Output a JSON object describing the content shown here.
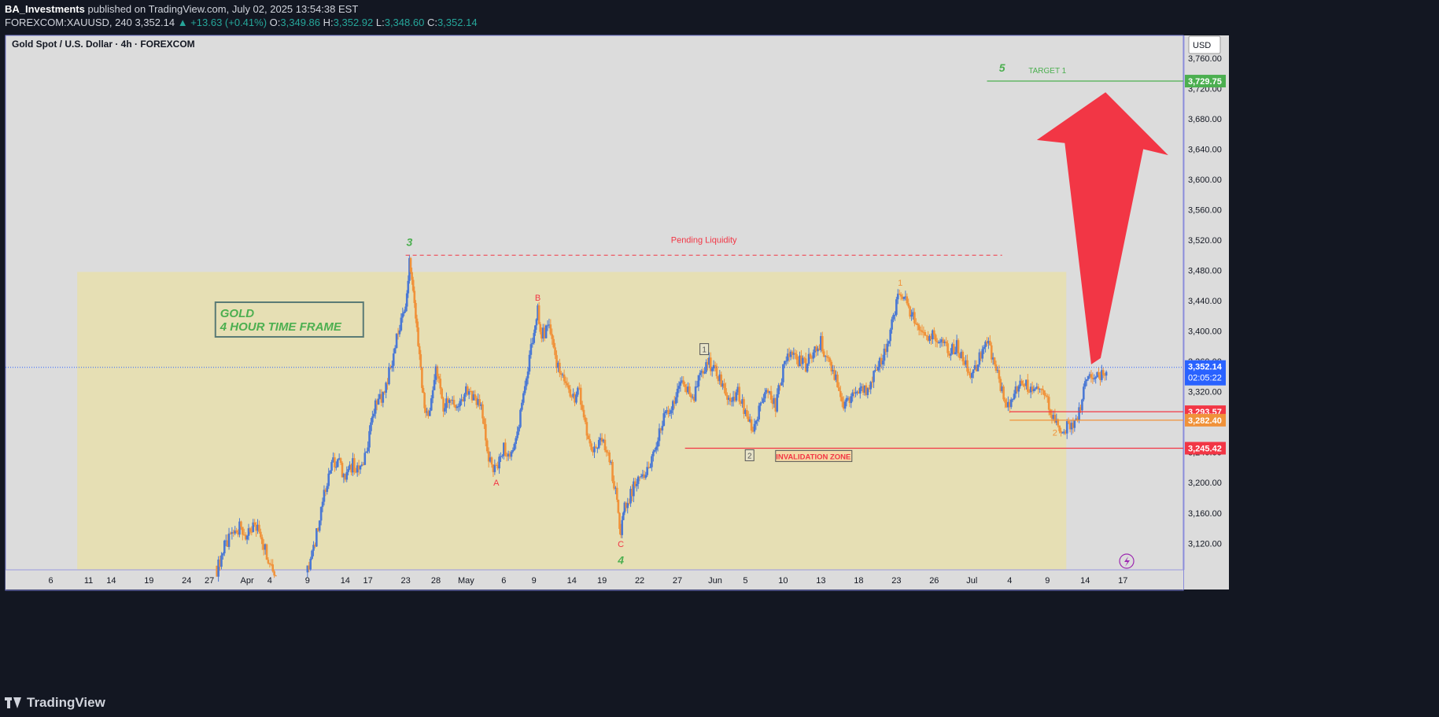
{
  "header": {
    "author": "BA_Investments",
    "published": "published on TradingView.com, July 02, 2025 13:54:38 EST",
    "symbol_line": "FOREXCOM:XAUUSD, 240",
    "last": "3,352.14",
    "change": "+13.63 (+0.41%)",
    "o_label": "O:",
    "o_value": "3,349.86",
    "h_label": "H:",
    "h_value": "3,352.92",
    "l_label": "L:",
    "l_value": "3,348.60",
    "c_label": "C:",
    "c_value": "3,352.14"
  },
  "chart_title": "Gold Spot / U.S. Dollar · 4h · FOREXCOM",
  "currency": "USD",
  "footer_brand": "TradingView",
  "colors": {
    "up": "#4a78d4",
    "down": "#f0923a",
    "zone_fill": "#e6dfb4",
    "chart_bg": "#dcdcdc",
    "accent_green": "#4caf50",
    "accent_red": "#f23645",
    "price_blue": "#2962ff"
  },
  "chart_data": {
    "type": "candlestick",
    "ylim": [
      3085,
      3790
    ],
    "y_ticks": [
      3120,
      3160,
      3200,
      3240,
      3280,
      3320,
      3360,
      3400,
      3440,
      3480,
      3520,
      3560,
      3600,
      3640,
      3680,
      3720,
      3760
    ],
    "x_ticks": [
      {
        "x": 0,
        "label": "6"
      },
      {
        "x": 5,
        "label": "11"
      },
      {
        "x": 8,
        "label": "14"
      },
      {
        "x": 13,
        "label": "19"
      },
      {
        "x": 18,
        "label": "24"
      },
      {
        "x": 21,
        "label": "27"
      },
      {
        "x": 26,
        "label": "Apr"
      },
      {
        "x": 29,
        "label": "4"
      },
      {
        "x": 34,
        "label": "9"
      },
      {
        "x": 39,
        "label": "14"
      },
      {
        "x": 42,
        "label": "17"
      },
      {
        "x": 47,
        "label": "23"
      },
      {
        "x": 51,
        "label": "28"
      },
      {
        "x": 55,
        "label": "May"
      },
      {
        "x": 60,
        "label": "6"
      },
      {
        "x": 64,
        "label": "9"
      },
      {
        "x": 69,
        "label": "14"
      },
      {
        "x": 73,
        "label": "19"
      },
      {
        "x": 78,
        "label": "22"
      },
      {
        "x": 83,
        "label": "27"
      },
      {
        "x": 88,
        "label": "Jun"
      },
      {
        "x": 92,
        "label": "5"
      },
      {
        "x": 97,
        "label": "10"
      },
      {
        "x": 102,
        "label": "13"
      },
      {
        "x": 107,
        "label": "18"
      },
      {
        "x": 112,
        "label": "23"
      },
      {
        "x": 117,
        "label": "26"
      },
      {
        "x": 122,
        "label": "Jul"
      },
      {
        "x": 127,
        "label": "4"
      },
      {
        "x": 132,
        "label": "9"
      },
      {
        "x": 137,
        "label": "14"
      },
      {
        "x": 142,
        "label": "17"
      }
    ],
    "close_path": [
      {
        "x": 22,
        "y": 3085
      },
      {
        "x": 23,
        "y": 3115
      },
      {
        "x": 24,
        "y": 3130
      },
      {
        "x": 25,
        "y": 3140
      },
      {
        "x": 26,
        "y": 3128
      },
      {
        "x": 27,
        "y": 3148
      },
      {
        "x": 28,
        "y": 3125
      },
      {
        "x": 29,
        "y": 3095
      },
      {
        "x": 30,
        "y": 3080
      },
      {
        "x": 34,
        "y": 3085
      },
      {
        "x": 35,
        "y": 3120
      },
      {
        "x": 36,
        "y": 3180
      },
      {
        "x": 37,
        "y": 3220
      },
      {
        "x": 38,
        "y": 3232
      },
      {
        "x": 39,
        "y": 3205
      },
      {
        "x": 40,
        "y": 3225
      },
      {
        "x": 41,
        "y": 3215
      },
      {
        "x": 42,
        "y": 3255
      },
      {
        "x": 43,
        "y": 3300
      },
      {
        "x": 44,
        "y": 3318
      },
      {
        "x": 45,
        "y": 3350
      },
      {
        "x": 46,
        "y": 3400
      },
      {
        "x": 47,
        "y": 3430
      },
      {
        "x": 47.5,
        "y": 3490
      },
      {
        "x": 48,
        "y": 3450
      },
      {
        "x": 48.5,
        "y": 3400
      },
      {
        "x": 49,
        "y": 3350
      },
      {
        "x": 49.5,
        "y": 3300
      },
      {
        "x": 50,
        "y": 3290
      },
      {
        "x": 51,
        "y": 3350
      },
      {
        "x": 52,
        "y": 3300
      },
      {
        "x": 53,
        "y": 3310
      },
      {
        "x": 54,
        "y": 3295
      },
      {
        "x": 55,
        "y": 3320
      },
      {
        "x": 56,
        "y": 3310
      },
      {
        "x": 57,
        "y": 3300
      },
      {
        "x": 58,
        "y": 3230
      },
      {
        "x": 59,
        "y": 3215
      },
      {
        "x": 60,
        "y": 3245
      },
      {
        "x": 61,
        "y": 3240
      },
      {
        "x": 62,
        "y": 3280
      },
      {
        "x": 63,
        "y": 3340
      },
      {
        "x": 64,
        "y": 3400
      },
      {
        "x": 64.5,
        "y": 3428
      },
      {
        "x": 65,
        "y": 3395
      },
      {
        "x": 66,
        "y": 3405
      },
      {
        "x": 67,
        "y": 3355
      },
      {
        "x": 68,
        "y": 3330
      },
      {
        "x": 69,
        "y": 3310
      },
      {
        "x": 70,
        "y": 3320
      },
      {
        "x": 71,
        "y": 3260
      },
      {
        "x": 72,
        "y": 3240
      },
      {
        "x": 73,
        "y": 3255
      },
      {
        "x": 74,
        "y": 3230
      },
      {
        "x": 75,
        "y": 3180
      },
      {
        "x": 75.5,
        "y": 3130
      },
      {
        "x": 76,
        "y": 3165
      },
      {
        "x": 77,
        "y": 3190
      },
      {
        "x": 78,
        "y": 3210
      },
      {
        "x": 79,
        "y": 3215
      },
      {
        "x": 80,
        "y": 3240
      },
      {
        "x": 81,
        "y": 3280
      },
      {
        "x": 82,
        "y": 3300
      },
      {
        "x": 83,
        "y": 3320
      },
      {
        "x": 84,
        "y": 3330
      },
      {
        "x": 85,
        "y": 3310
      },
      {
        "x": 86,
        "y": 3340
      },
      {
        "x": 87,
        "y": 3360
      },
      {
        "x": 88,
        "y": 3345
      },
      {
        "x": 89,
        "y": 3330
      },
      {
        "x": 90,
        "y": 3300
      },
      {
        "x": 91,
        "y": 3320
      },
      {
        "x": 92,
        "y": 3290
      },
      {
        "x": 93,
        "y": 3270
      },
      {
        "x": 94,
        "y": 3300
      },
      {
        "x": 95,
        "y": 3320
      },
      {
        "x": 96,
        "y": 3300
      },
      {
        "x": 97,
        "y": 3350
      },
      {
        "x": 98,
        "y": 3380
      },
      {
        "x": 99,
        "y": 3360
      },
      {
        "x": 100,
        "y": 3355
      },
      {
        "x": 101,
        "y": 3370
      },
      {
        "x": 102,
        "y": 3385
      },
      {
        "x": 103,
        "y": 3360
      },
      {
        "x": 104,
        "y": 3340
      },
      {
        "x": 105,
        "y": 3300
      },
      {
        "x": 106,
        "y": 3315
      },
      {
        "x": 107,
        "y": 3325
      },
      {
        "x": 108,
        "y": 3320
      },
      {
        "x": 109,
        "y": 3345
      },
      {
        "x": 110,
        "y": 3360
      },
      {
        "x": 111,
        "y": 3390
      },
      {
        "x": 112,
        "y": 3440
      },
      {
        "x": 113,
        "y": 3445
      },
      {
        "x": 114,
        "y": 3420
      },
      {
        "x": 115,
        "y": 3400
      },
      {
        "x": 116,
        "y": 3390
      },
      {
        "x": 117,
        "y": 3395
      },
      {
        "x": 118,
        "y": 3385
      },
      {
        "x": 119,
        "y": 3370
      },
      {
        "x": 120,
        "y": 3380
      },
      {
        "x": 121,
        "y": 3360
      },
      {
        "x": 122,
        "y": 3340
      },
      {
        "x": 123,
        "y": 3365
      },
      {
        "x": 124,
        "y": 3385
      },
      {
        "x": 125,
        "y": 3360
      },
      {
        "x": 126,
        "y": 3320
      },
      {
        "x": 127,
        "y": 3300
      },
      {
        "x": 128,
        "y": 3325
      },
      {
        "x": 129,
        "y": 3330
      },
      {
        "x": 130,
        "y": 3320
      },
      {
        "x": 131,
        "y": 3318
      },
      {
        "x": 132,
        "y": 3305
      },
      {
        "x": 133,
        "y": 3285
      },
      {
        "x": 134,
        "y": 3268
      },
      {
        "x": 135,
        "y": 3275
      },
      {
        "x": 136,
        "y": 3290
      },
      {
        "x": 137,
        "y": 3325
      },
      {
        "x": 138,
        "y": 3345
      },
      {
        "x": 139,
        "y": 3340
      },
      {
        "x": 140,
        "y": 3352
      }
    ],
    "x_domain": [
      -6,
      150
    ],
    "zone": {
      "x0": 3.5,
      "x1": 134.5,
      "y0": 3085,
      "y1": 3478
    },
    "levels": [
      {
        "name": "target",
        "value": 3729.75,
        "label": "3,729.75",
        "color": "#4caf50",
        "x0": 124
      },
      {
        "name": "resistance-1",
        "value": 3293.57,
        "label": "3,293.57",
        "color": "#f23645",
        "x0": 127
      },
      {
        "name": "resistance-2",
        "value": 3282.4,
        "label": "3,282.40",
        "color": "#f0923a",
        "x0": 127
      },
      {
        "name": "invalidation",
        "value": 3245.42,
        "label": "3,245.42",
        "color": "#f23645",
        "x0": 84
      }
    ],
    "current_price": {
      "value": 3352.14,
      "label": "3,352.14",
      "countdown": "02:05:22"
    },
    "pending_liquidity": {
      "value": 3500,
      "x0": 47,
      "x1": 126,
      "label": "Pending Liquidity"
    },
    "annotations": [
      {
        "text": "3",
        "x": 47.5,
        "y": 3512,
        "color": "#4caf50",
        "style": "wave-major"
      },
      {
        "text": "4",
        "x": 75.5,
        "y": 3093,
        "color": "#4caf50",
        "style": "wave-major"
      },
      {
        "text": "5",
        "x": 126,
        "y": 3742,
        "color": "#4caf50",
        "style": "wave-major"
      },
      {
        "text": "A",
        "x": 59,
        "y": 3196,
        "color": "#f23645",
        "style": "wave-minor"
      },
      {
        "text": "B",
        "x": 64.5,
        "y": 3440,
        "color": "#f23645",
        "style": "wave-minor"
      },
      {
        "text": "C",
        "x": 75.5,
        "y": 3115,
        "color": "#f23645",
        "style": "wave-minor"
      },
      {
        "text": "1",
        "x": 112.5,
        "y": 3460,
        "color": "#f0923a",
        "style": "wave-minor"
      },
      {
        "text": "2",
        "x": 133,
        "y": 3262,
        "color": "#f0923a",
        "style": "wave-minor"
      },
      {
        "text": "1",
        "x": 86.5,
        "y": 3372,
        "color": "#555555",
        "style": "boxed"
      },
      {
        "text": "2",
        "x": 92.5,
        "y": 3232,
        "color": "#555555",
        "style": "boxed"
      },
      {
        "text": "TARGET 1",
        "x": 132,
        "y": 3740,
        "color": "#4caf50",
        "style": "small"
      },
      {
        "text": "INVALIDATION ZONE",
        "x": 101,
        "y": 3231,
        "color": "#f23645",
        "style": "boxed-text"
      }
    ],
    "title_box": {
      "line1": "GOLD",
      "line2": "4 HOUR TIME FRAME"
    }
  }
}
